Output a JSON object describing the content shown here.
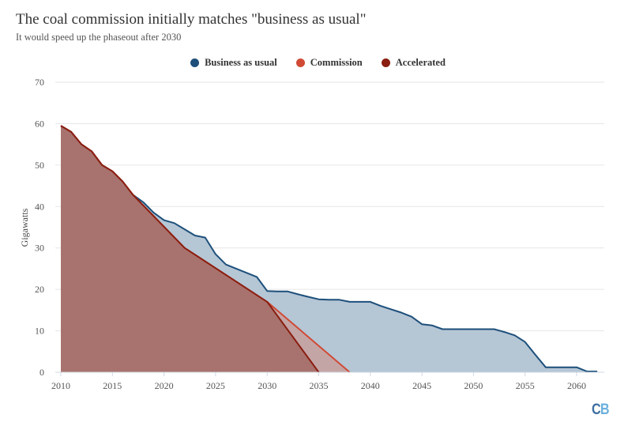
{
  "chart_data": {
    "type": "area",
    "title": "The coal commission initially matches \"business as usual\"",
    "subtitle": "It would speed up the phaseout after 2030",
    "xlabel": "",
    "ylabel": "Gigawatts",
    "xlim": [
      2010,
      2062
    ],
    "ylim": [
      0,
      70
    ],
    "x_ticks": [
      2010,
      2015,
      2020,
      2025,
      2030,
      2035,
      2040,
      2045,
      2050,
      2055,
      2060
    ],
    "y_ticks": [
      0,
      10,
      20,
      30,
      40,
      50,
      60,
      70
    ],
    "grid": true,
    "legend_position": "top-center",
    "series": [
      {
        "name": "Business as usual",
        "color": "#1d4f7a",
        "fill": "#b5c6d5",
        "x": [
          2010,
          2011,
          2012,
          2013,
          2014,
          2015,
          2016,
          2017,
          2018,
          2019,
          2020,
          2021,
          2022,
          2023,
          2024,
          2025,
          2026,
          2027,
          2028,
          2029,
          2030,
          2031,
          2032,
          2033,
          2034,
          2035,
          2036,
          2037,
          2038,
          2039,
          2040,
          2041,
          2042,
          2043,
          2044,
          2045,
          2046,
          2047,
          2048,
          2049,
          2050,
          2051,
          2052,
          2053,
          2054,
          2055,
          2056,
          2057,
          2058,
          2059,
          2060,
          2061,
          2062
        ],
        "values": [
          59.5,
          58,
          55,
          53.3,
          50,
          48.5,
          46,
          42.8,
          41,
          38.5,
          36.7,
          36,
          34.5,
          33,
          32.5,
          28.5,
          26,
          25,
          24,
          23,
          19.6,
          19.5,
          19.5,
          18.8,
          18.2,
          17.6,
          17.5,
          17.5,
          17,
          17,
          17,
          16,
          15.2,
          14.4,
          13.4,
          11.6,
          11.3,
          10.4,
          10.4,
          10.4,
          10.4,
          10.4,
          10.4,
          9.7,
          8.9,
          7.3,
          4.2,
          1.2,
          1.2,
          1.2,
          1.2,
          0.2,
          0.2
        ]
      },
      {
        "name": "Commission",
        "color": "#d04a35",
        "fill": "#c99a96",
        "x": [
          2010,
          2011,
          2012,
          2013,
          2014,
          2015,
          2016,
          2017,
          2022,
          2030,
          2038
        ],
        "values": [
          59.5,
          58,
          55,
          53.3,
          50,
          48.5,
          46,
          42.8,
          30,
          17,
          0
        ]
      },
      {
        "name": "Accelerated",
        "color": "#8a1e10",
        "fill": "#a8736e",
        "x": [
          2010,
          2011,
          2012,
          2013,
          2014,
          2015,
          2016,
          2017,
          2022,
          2030,
          2035
        ],
        "values": [
          59.5,
          58,
          55,
          53.3,
          50,
          48.5,
          46,
          42.8,
          30,
          17,
          0
        ]
      }
    ]
  },
  "logo": {
    "c": "C",
    "b": "B"
  }
}
